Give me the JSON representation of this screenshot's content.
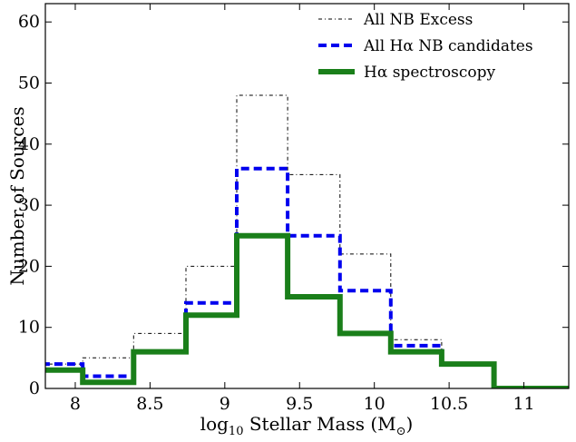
{
  "chart_data": {
    "type": "histogram",
    "xlabel_parts": {
      "log": "log",
      "base": "10",
      "text": " Stellar Mass (M",
      "sub": "⊙",
      "close": ")"
    },
    "ylabel": "Number of Sources",
    "xlim": [
      7.8,
      11.3
    ],
    "ylim": [
      0,
      63
    ],
    "xticks": [
      8,
      8.5,
      9,
      9.5,
      10,
      10.5,
      11
    ],
    "xtick_labels": [
      "8",
      "8.5",
      "9",
      "9.5",
      "10",
      "10.5",
      "11"
    ],
    "yticks": [
      0,
      10,
      20,
      30,
      40,
      50,
      60
    ],
    "ytick_labels": [
      "0",
      "10",
      "20",
      "30",
      "40",
      "50",
      "60"
    ],
    "bin_edges": [
      7.69,
      8.05,
      8.39,
      8.74,
      9.08,
      9.42,
      9.77,
      10.11,
      10.45,
      10.8,
      11.14,
      11.48
    ],
    "legend_position": "top-right",
    "series": [
      {
        "name": "All NB Excess",
        "color": "#000000",
        "style": "dashdot",
        "values": [
          4,
          5,
          9,
          20,
          48,
          35,
          22,
          8,
          4,
          0,
          0
        ]
      },
      {
        "name": "All Hα NB candidates",
        "color": "#0000ee",
        "style": "dashed",
        "values": [
          4,
          2,
          6,
          14,
          36,
          25,
          16,
          7,
          4,
          0,
          0
        ]
      },
      {
        "name": "Hα spectroscopy",
        "color": "#1a7f1a",
        "style": "solid",
        "values": [
          3,
          1,
          6,
          12,
          25,
          15,
          9,
          6,
          4,
          0,
          0
        ]
      }
    ]
  }
}
